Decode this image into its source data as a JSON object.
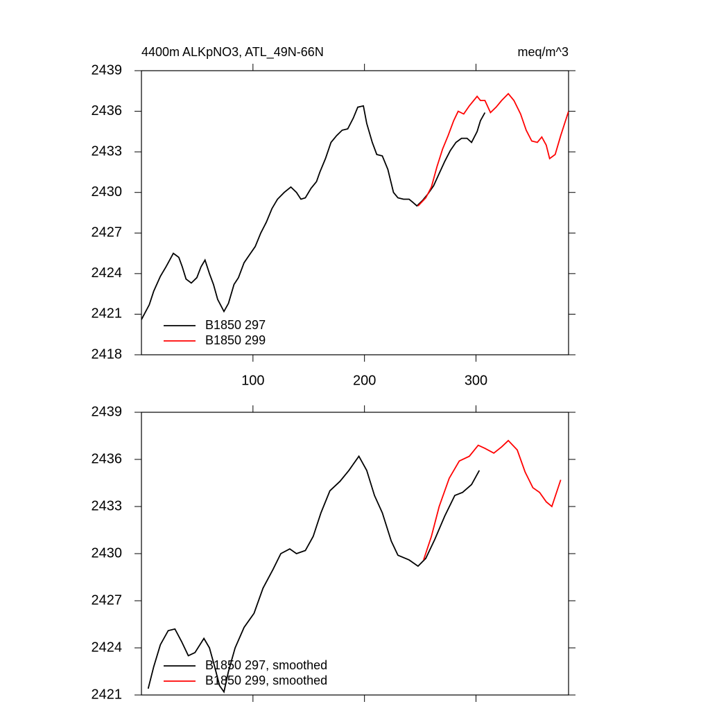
{
  "chart_data": [
    {
      "type": "line",
      "title": "4400m ALKpNO3, ATL_49N-66N",
      "units": "meq/m^3",
      "xlim": [
        0,
        383
      ],
      "xticks": [
        100,
        200,
        300
      ],
      "ylim": [
        2418,
        2439
      ],
      "yticks": [
        2418,
        2421,
        2424,
        2427,
        2430,
        2433,
        2436,
        2439
      ],
      "legend": "lower left",
      "series": [
        {
          "name": "B1850 297",
          "color": "#000000",
          "x": [
            0,
            7,
            11,
            17,
            22,
            28.6,
            33.5,
            36.6,
            40,
            44.7,
            49.7,
            53.4,
            57,
            61,
            64.6,
            68.3,
            74,
            78,
            83,
            87,
            92,
            97,
            102,
            107,
            112,
            117,
            122,
            128,
            134,
            139,
            143,
            147,
            152,
            157,
            160,
            165,
            170,
            175,
            180,
            185,
            190,
            194,
            199,
            202,
            207,
            211,
            216,
            221,
            226,
            230,
            235,
            240,
            243,
            247,
            252,
            257,
            262,
            267,
            272,
            277,
            282,
            287,
            292,
            296,
            301,
            304,
            308
          ],
          "values": [
            2420.6,
            2421.7,
            2422.7,
            2423.8,
            2424.5,
            2425.5,
            2425.2,
            2424.5,
            2423.6,
            2423.3,
            2423.7,
            2424.5,
            2425.0,
            2424.0,
            2423.2,
            2422.1,
            2421.2,
            2421.8,
            2423.2,
            2423.7,
            2424.8,
            2425.4,
            2426.0,
            2427.0,
            2427.8,
            2428.8,
            2429.5,
            2430.0,
            2430.4,
            2430.0,
            2429.5,
            2429.6,
            2430.3,
            2430.8,
            2431.5,
            2432.5,
            2433.7,
            2434.2,
            2434.6,
            2434.7,
            2435.5,
            2436.3,
            2436.4,
            2435.1,
            2433.7,
            2432.8,
            2432.7,
            2431.7,
            2430.0,
            2429.6,
            2429.5,
            2429.5,
            2429.3,
            2429.0,
            2429.4,
            2429.9,
            2430.5,
            2431.4,
            2432.3,
            2433.1,
            2433.7,
            2434.0,
            2434.0,
            2433.7,
            2434.5,
            2435.3,
            2435.9
          ]
        },
        {
          "name": "B1850 299",
          "color": "#ff0000",
          "x": [
            248,
            255,
            260,
            265,
            270,
            275,
            280,
            284,
            289,
            294,
            301,
            304,
            308,
            313,
            318,
            323,
            329,
            334,
            340,
            345,
            350,
            355,
            359,
            363,
            366,
            371,
            376,
            383
          ],
          "values": [
            2429.0,
            2429.6,
            2430.4,
            2431.9,
            2433.2,
            2434.2,
            2435.3,
            2436.0,
            2435.8,
            2436.4,
            2437.1,
            2436.8,
            2436.8,
            2435.9,
            2436.3,
            2436.8,
            2437.3,
            2436.8,
            2435.8,
            2434.6,
            2433.8,
            2433.7,
            2434.1,
            2433.5,
            2432.5,
            2432.8,
            2434.2,
            2436.0
          ]
        }
      ]
    },
    {
      "type": "line",
      "xlim": [
        0,
        383
      ],
      "ylim": [
        2421,
        2439
      ],
      "yticks": [
        2421,
        2424,
        2427,
        2430,
        2433,
        2436,
        2439
      ],
      "legend": "lower left",
      "series": [
        {
          "name": "B1850 297, smoothed",
          "color": "#000000",
          "x": [
            6,
            11,
            17,
            24,
            30,
            36,
            42,
            48,
            56,
            61,
            66,
            70,
            74,
            78,
            84,
            92,
            101,
            109,
            118,
            125,
            133,
            139,
            147,
            154,
            161,
            169,
            178,
            186,
            195,
            202,
            209,
            216,
            224,
            230,
            240,
            248,
            255,
            263,
            272,
            281,
            288,
            296,
            303
          ],
          "values": [
            2421.4,
            2422.8,
            2424.2,
            2425.1,
            2425.2,
            2424.4,
            2423.5,
            2423.7,
            2424.6,
            2424.0,
            2422.7,
            2421.6,
            2421.2,
            2422.5,
            2424.0,
            2425.3,
            2426.2,
            2427.8,
            2429.0,
            2430.0,
            2430.3,
            2430.0,
            2430.2,
            2431.1,
            2432.6,
            2434.0,
            2434.6,
            2435.3,
            2436.2,
            2435.3,
            2433.7,
            2432.6,
            2430.8,
            2429.9,
            2429.6,
            2429.2,
            2429.7,
            2430.9,
            2432.4,
            2433.7,
            2433.9,
            2434.4,
            2435.3
          ]
        },
        {
          "name": "B1850 299, smoothed",
          "color": "#ff0000",
          "x": [
            253,
            260,
            267,
            276,
            285,
            294,
            302,
            308,
            316,
            323,
            329,
            337,
            344,
            351,
            357,
            363,
            368,
            376
          ],
          "values": [
            2429.6,
            2431.1,
            2433.0,
            2434.8,
            2435.9,
            2436.2,
            2436.9,
            2436.7,
            2436.4,
            2436.8,
            2437.2,
            2436.6,
            2435.2,
            2434.2,
            2433.9,
            2433.3,
            2433.0,
            2434.7
          ]
        }
      ]
    }
  ]
}
